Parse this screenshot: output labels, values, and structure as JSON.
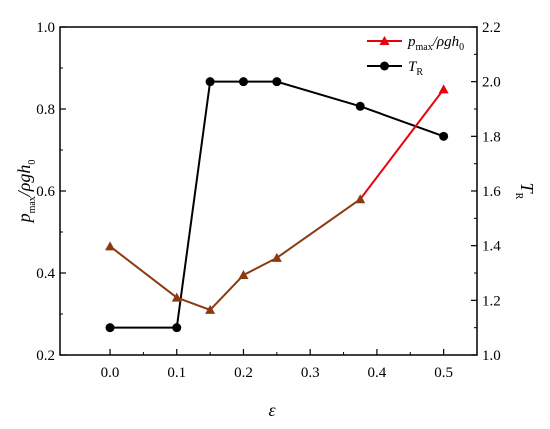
{
  "chart_data": {
    "type": "line",
    "x": [
      0.0,
      0.1,
      0.15,
      0.2,
      0.25,
      0.375,
      0.5
    ],
    "xlabel": "ε",
    "xlim": [
      -0.075,
      0.55
    ],
    "xticks": [
      "0.0",
      "0.1",
      "0.2",
      "0.3",
      "0.4",
      "0.5"
    ],
    "y_left": {
      "label_main": "p",
      "label_sub": "max",
      "label_rest": "/ρgh",
      "label_sub2": "0",
      "lim": [
        0.2,
        1.0
      ],
      "ticks": [
        "0.2",
        "0.4",
        "0.6",
        "0.8",
        "1.0"
      ]
    },
    "y_right": {
      "label_main": "T",
      "label_sub": "R",
      "lim": [
        1.0,
        2.2
      ],
      "ticks": [
        "1.0",
        "1.2",
        "1.4",
        "1.6",
        "1.8",
        "2.0",
        "2.2"
      ]
    },
    "series": [
      {
        "name": "p_max/ρgh_0",
        "axis": "left",
        "values": [
          0.465,
          0.34,
          0.31,
          0.395,
          0.437,
          0.58,
          0.848
        ],
        "color": "#e8000b",
        "overlap_color": "#8b3a0f",
        "marker": "triangle"
      },
      {
        "name": "T_R",
        "axis": "right",
        "values": [
          1.1,
          1.1,
          2.0,
          2.0,
          2.0,
          1.91,
          1.8
        ],
        "color": "#000000",
        "marker": "circle"
      }
    ],
    "legend": {
      "position": "top-right",
      "entries": [
        {
          "main": "p",
          "sub": "max",
          "rest": "/ρgh",
          "sub2": "0"
        },
        {
          "main": "T",
          "sub": "R"
        }
      ]
    },
    "grid": false
  }
}
